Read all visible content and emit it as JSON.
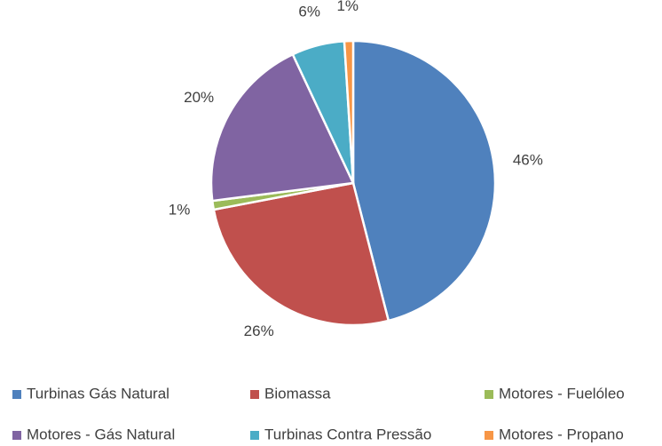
{
  "chart_data": {
    "type": "pie",
    "categories": [
      "Turbinas Gás Natural",
      "Biomassa",
      "Motores - Fuelóleo",
      "Motores - Gás Natural",
      "Turbinas Contra Pressão",
      "Motores - Propano"
    ],
    "values": [
      46,
      26,
      1,
      20,
      6,
      1
    ],
    "value_labels": [
      "46%",
      "26%",
      "1%",
      "20%",
      "6%",
      "1%"
    ],
    "colors": [
      "#4f81bd",
      "#c0504d",
      "#9bbb59",
      "#8064a2",
      "#4bacc6",
      "#f79646"
    ],
    "legend": "bottom"
  }
}
